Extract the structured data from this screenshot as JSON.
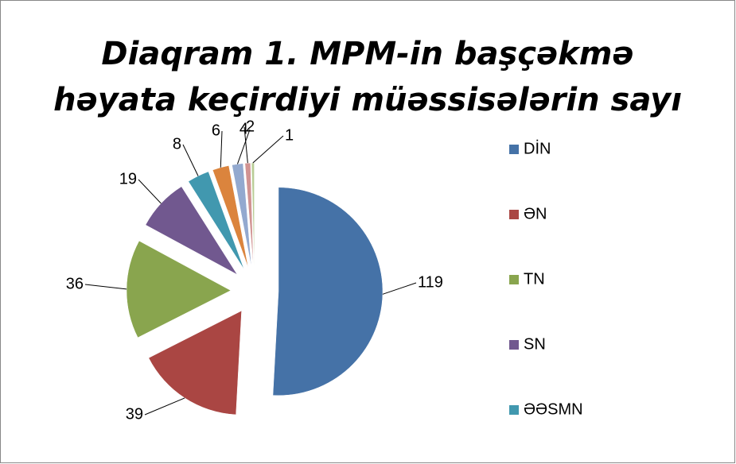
{
  "chart_data": {
    "type": "pie",
    "title": [
      "Diaqram 1. MPM-in başçəkmə",
      "həyata keçirdiyi müəssisələrin sayı"
    ],
    "categories": [
      "DİN",
      "ƏN",
      "TN",
      "SN",
      "ƏƏSMN",
      null,
      null,
      null,
      null
    ],
    "values": [
      119,
      39,
      36,
      19,
      8,
      6,
      4,
      2,
      1
    ],
    "colors": [
      "#4572a7",
      "#aa4643",
      "#89a54e",
      "#71588f",
      "#4198af",
      "#db843d",
      "#93a9cf",
      "#d19392",
      "#b9cd96"
    ],
    "legend": "right"
  }
}
